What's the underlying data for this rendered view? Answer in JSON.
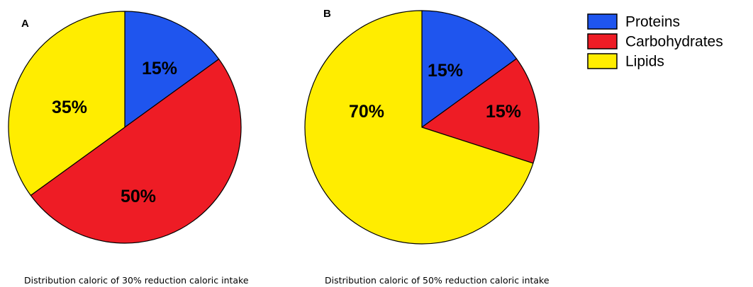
{
  "chart_data": [
    {
      "type": "pie",
      "panel": "A",
      "categories": [
        "Proteins",
        "Carbohydrates",
        "Lipids"
      ],
      "values": [
        15,
        50,
        35
      ],
      "labels": [
        "15%",
        "50%",
        "35%"
      ],
      "caption": "Distribution caloric of 30% reduction caloric intake"
    },
    {
      "type": "pie",
      "panel": "B",
      "categories": [
        "Proteins",
        "Carbohydrates",
        "Lipids"
      ],
      "values": [
        15,
        15,
        70
      ],
      "labels": [
        "15%",
        "15%",
        "70%"
      ],
      "caption": "Distribution caloric of 50% reduction caloric intake"
    }
  ],
  "legend": {
    "placement": "top-right",
    "items": [
      {
        "label": "Proteins",
        "color": "#1f55ee"
      },
      {
        "label": "Carbohydrates",
        "color": "#ee1c25"
      },
      {
        "label": "Lipids",
        "color": "#ffed00"
      }
    ]
  }
}
